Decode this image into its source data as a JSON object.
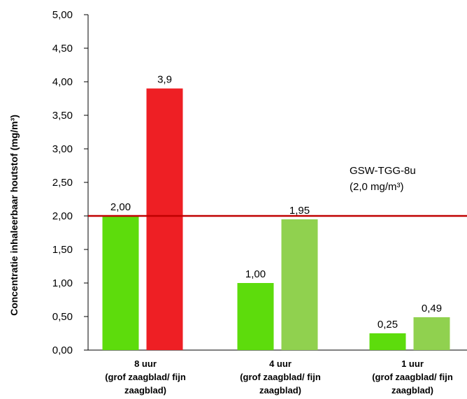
{
  "chart_data": {
    "type": "bar",
    "ylabel": "Concentratie inhaleerbaar houtstof  (mg/m³)",
    "ylim": [
      0,
      5
    ],
    "ytick_step": 0.5,
    "ytick_labels": [
      "0,00",
      "0,50",
      "1,00",
      "1,50",
      "2,00",
      "2,50",
      "3,00",
      "3,50",
      "4,00",
      "4,50",
      "5,00"
    ],
    "grid": false,
    "categories": [
      [
        "8 uur",
        "(grof zaagblad/ fijn",
        "zaagblad)"
      ],
      [
        "4 uur",
        "(grof zaagblad/ fijn",
        "zaagblad)"
      ],
      [
        "1 uur",
        "(grof zaagblad/ fijn",
        "zaagblad)"
      ]
    ],
    "series": [
      {
        "values": [
          2.0,
          1.0,
          0.25
        ],
        "labels": [
          "2,00",
          "1,00",
          "0,25"
        ]
      },
      {
        "values": [
          3.9,
          1.95,
          0.49
        ],
        "labels": [
          "3,9",
          "1,95",
          "0,49"
        ]
      }
    ],
    "bar_colors": [
      [
        "#5ddc0c",
        "#ee1f24"
      ],
      [
        "#5ddc0c",
        "#90d14f"
      ],
      [
        "#5ddc0c",
        "#90d14f"
      ]
    ],
    "reference_line": {
      "value": 2.0,
      "color": "#c00000",
      "label_lines": [
        "GSW-TGG-8u",
        "(2,0 mg/m³)"
      ]
    }
  }
}
